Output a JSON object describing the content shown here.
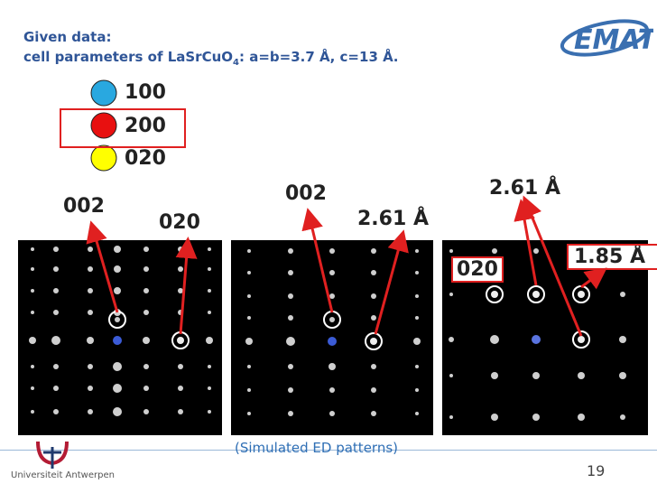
{
  "header": {
    "line1": "Given data:",
    "line2_prefix": "cell parameters of LaSrCuO",
    "line2_sub": "4",
    "line2_suffix": ": a=b=3.7 Å, c=13 Å."
  },
  "legend": [
    {
      "label": "100",
      "color": "#29a8e0"
    },
    {
      "label": "200",
      "color": "#e81010"
    },
    {
      "label": "020",
      "color": "#ffff00"
    }
  ],
  "annotations": {
    "p1_002": "002",
    "p1_020": "020",
    "p2_002": "002",
    "p2_261": "2.61 Å",
    "p3_261": "2.61 Å",
    "p3_020": "020",
    "p3_185": "1.85 Å"
  },
  "footer": {
    "caption": "(Simulated ED patterns)",
    "page_number": "19",
    "university": "Universiteit Antwerpen"
  },
  "colors": {
    "accent_red": "#e02020",
    "header_blue": "#2f5597",
    "emat_blue": "#3a6fb0"
  }
}
